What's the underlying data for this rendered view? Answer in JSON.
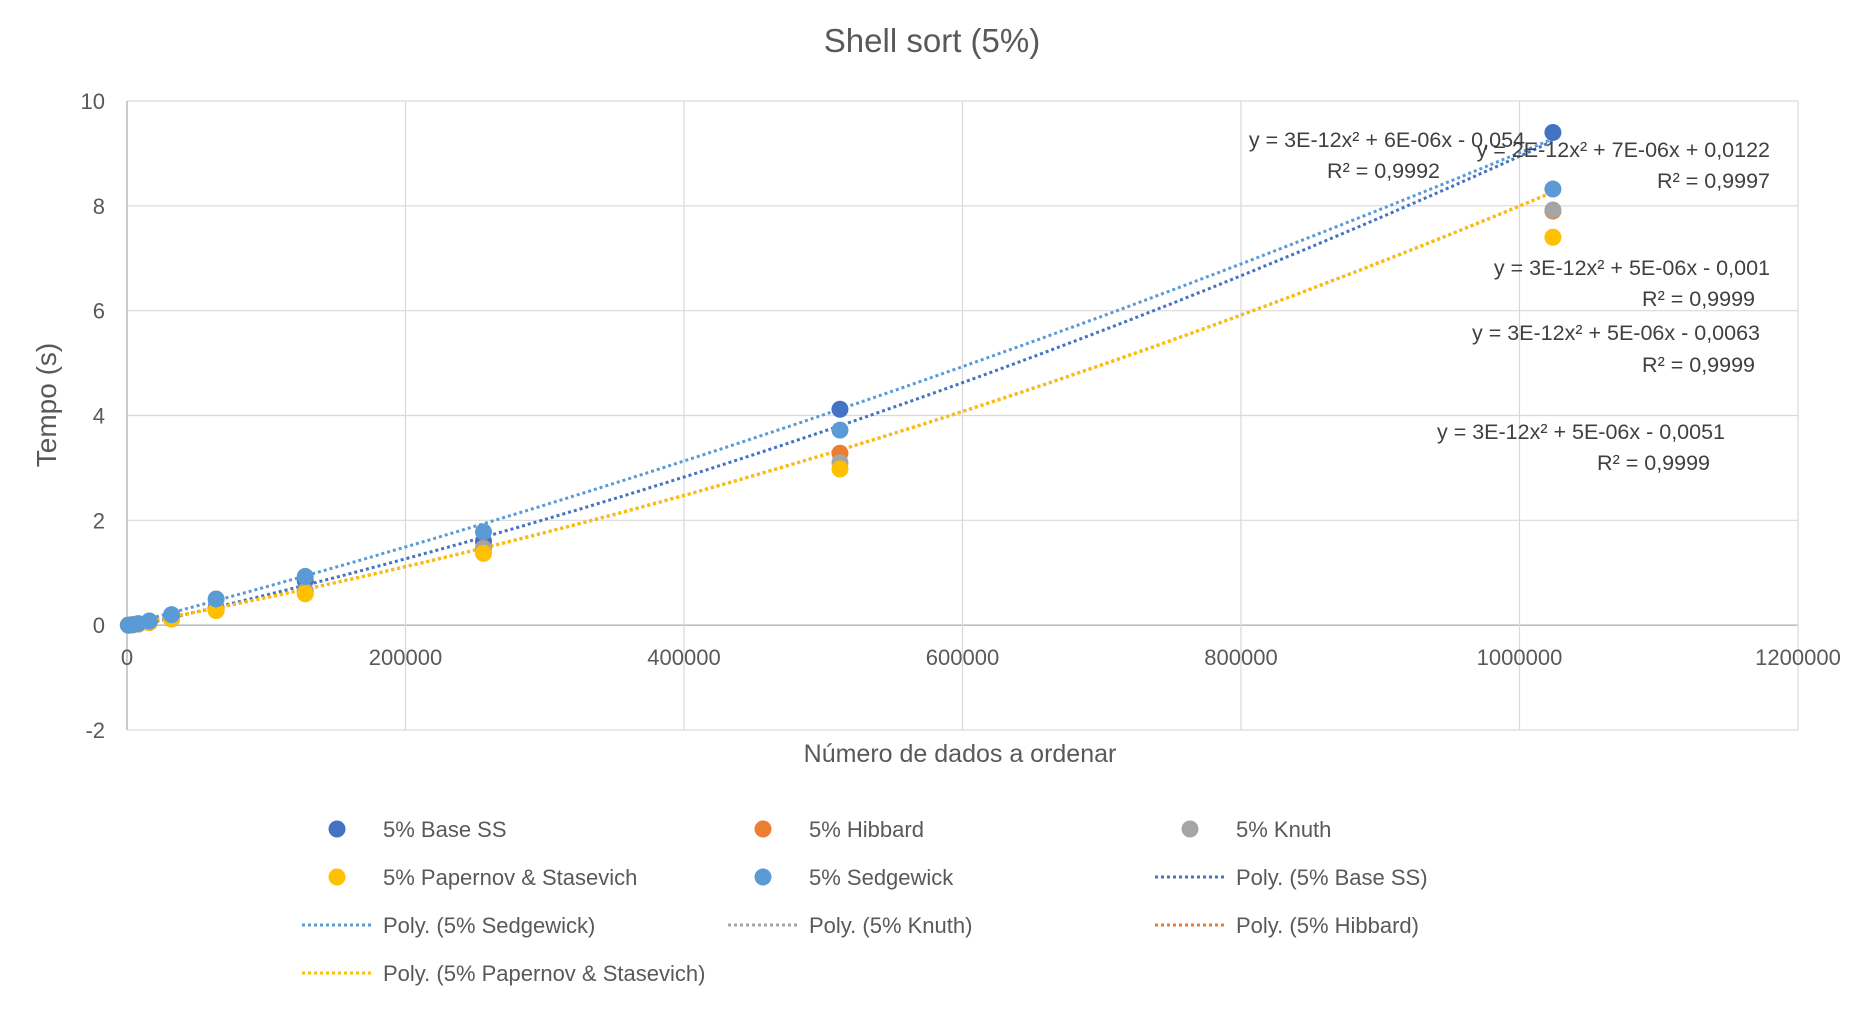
{
  "chart_data": {
    "type": "scatter",
    "title": "Shell sort (5%)",
    "xlabel": "Número de dados a ordenar",
    "ylabel": "Tempo (s)",
    "xlim": [
      0,
      1200000
    ],
    "ylim": [
      -2,
      10
    ],
    "x_ticks": [
      0,
      200000,
      400000,
      600000,
      800000,
      1000000,
      1200000
    ],
    "x_tick_labels": [
      "0",
      "200000",
      "400000",
      "600000",
      "800000",
      "1000000",
      "1200000"
    ],
    "y_ticks": [
      -2,
      0,
      2,
      4,
      6,
      8,
      10
    ],
    "y_tick_labels": [
      "-2",
      "0",
      "2",
      "4",
      "6",
      "8",
      "10"
    ],
    "grid": true,
    "legend_position": "bottom",
    "x": [
      1000,
      2000,
      4000,
      8000,
      16000,
      32000,
      64000,
      128000,
      256000,
      512000,
      1024000
    ],
    "series": [
      {
        "name": "5% Base SS",
        "color": "#4472C4",
        "values": [
          0.001,
          0.003,
          0.008,
          0.02,
          0.05,
          0.12,
          0.33,
          0.85,
          1.6,
          4.12,
          9.4
        ]
      },
      {
        "name": "5% Hibbard",
        "color": "#ED7D31",
        "values": [
          0.001,
          0.003,
          0.008,
          0.02,
          0.05,
          0.12,
          0.3,
          0.65,
          1.47,
          3.28,
          7.9
        ]
      },
      {
        "name": "5% Knuth",
        "color": "#A5A5A5",
        "values": [
          0.001,
          0.003,
          0.008,
          0.02,
          0.05,
          0.12,
          0.28,
          0.65,
          1.46,
          3.1,
          7.92
        ]
      },
      {
        "name": "5% Papernov & Stasevich",
        "color": "#FFC000",
        "values": [
          0.001,
          0.003,
          0.008,
          0.02,
          0.05,
          0.12,
          0.28,
          0.6,
          1.37,
          2.98,
          7.4
        ]
      },
      {
        "name": "5% Sedgewick",
        "color": "#5B9BD5",
        "values": [
          0.001,
          0.003,
          0.008,
          0.03,
          0.08,
          0.2,
          0.5,
          0.93,
          1.78,
          3.72,
          8.32
        ]
      }
    ],
    "trendlines": [
      {
        "name": "Poly. (5% Base SS)",
        "color": "#4472C4",
        "coef": [
          3e-12,
          6e-06,
          -0.054
        ],
        "equation": "y = 3E-12x² + 6E-06x - 0,054",
        "r2": "R² = 0,9992"
      },
      {
        "name": "Poly. (5% Sedgewick)",
        "color": "#5B9BD5",
        "coef": [
          2e-12,
          7e-06,
          0.0122
        ],
        "equation": "y = 2E-12x² + 7E-06x + 0,0122",
        "r2": "R² = 0,9997"
      },
      {
        "name": "Poly. (5% Knuth)",
        "color": "#A5A5A5",
        "coef": [
          3e-12,
          5e-06,
          -0.001
        ],
        "equation": "y = 3E-12x² + 5E-06x - 0,001",
        "r2": "R² = 0,9999"
      },
      {
        "name": "Poly. (5% Hibbard)",
        "color": "#ED7D31",
        "coef": [
          3e-12,
          5e-06,
          -0.0063
        ],
        "equation": "y = 3E-12x² + 5E-06x - 0,0063",
        "r2": "R² = 0,9999"
      },
      {
        "name": "Poly. (5% Papernov & Stasevich)",
        "color": "#FFC000",
        "coef": [
          3e-12,
          5e-06,
          -0.0051
        ],
        "equation": "y = 3E-12x² + 5E-06x - 0,0051",
        "r2": "R² = 0,9999"
      }
    ],
    "legend_entries": [
      {
        "label": "5% Base SS",
        "kind": "marker",
        "color": "#4472C4"
      },
      {
        "label": "5% Hibbard",
        "kind": "marker",
        "color": "#ED7D31"
      },
      {
        "label": "5% Knuth",
        "kind": "marker",
        "color": "#A5A5A5"
      },
      {
        "label": "5% Papernov & Stasevich",
        "kind": "marker",
        "color": "#FFC000"
      },
      {
        "label": "5% Sedgewick",
        "kind": "marker",
        "color": "#5B9BD5"
      },
      {
        "label": "Poly. (5% Base SS)",
        "kind": "line",
        "color": "#4472C4"
      },
      {
        "label": "Poly. (5% Sedgewick)",
        "kind": "line",
        "color": "#5B9BD5"
      },
      {
        "label": "Poly. (5% Knuth)",
        "kind": "line",
        "color": "#A5A5A5"
      },
      {
        "label": "Poly. (5% Hibbard)",
        "kind": "line",
        "color": "#ED7D31"
      },
      {
        "label": "Poly. (5% Papernov & Stasevich)",
        "kind": "line",
        "color": "#FFC000"
      }
    ]
  }
}
